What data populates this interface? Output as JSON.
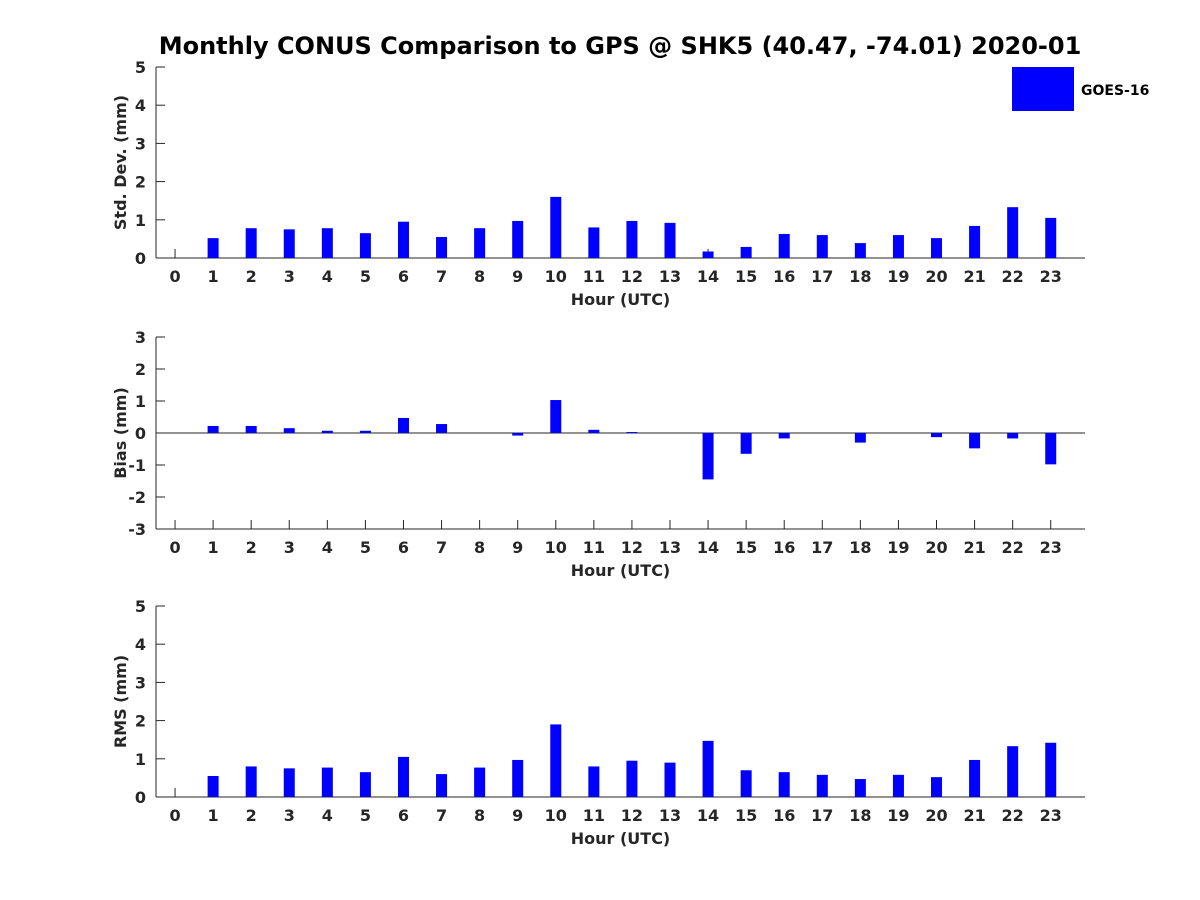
{
  "chart_data": {
    "type": "bar",
    "title": "Monthly CONUS Comparison to GPS @ SHK5 (40.47, -74.01) 2020-01",
    "legend": {
      "label": "GOES-16",
      "color": "#0000ff",
      "placement": "top-right"
    },
    "categories": [
      "0",
      "1",
      "2",
      "3",
      "4",
      "5",
      "6",
      "7",
      "8",
      "9",
      "10",
      "11",
      "12",
      "13",
      "14",
      "15",
      "16",
      "17",
      "18",
      "19",
      "20",
      "21",
      "22",
      "23"
    ],
    "subplots": [
      {
        "id": "std",
        "ylabel": "Std. Dev. (mm)",
        "xlabel": "Hour (UTC)",
        "ylim": [
          0,
          5
        ],
        "yticks": [
          0,
          1,
          2,
          3,
          4,
          5
        ],
        "series": [
          {
            "name": "GOES-16",
            "values": [
              0,
              0.52,
              0.78,
              0.75,
              0.78,
              0.65,
              0.95,
              0.55,
              0.78,
              0.97,
              1.6,
              0.8,
              0.97,
              0.92,
              0.17,
              0.29,
              0.63,
              0.6,
              0.39,
              0.6,
              0.52,
              0.84,
              1.33,
              1.05
            ]
          }
        ]
      },
      {
        "id": "bias",
        "ylabel": "Bias (mm)",
        "xlabel": "Hour (UTC)",
        "ylim": [
          -3,
          3
        ],
        "yticks": [
          -3,
          -2,
          -1,
          0,
          1,
          2,
          3
        ],
        "series": [
          {
            "name": "GOES-16",
            "values": [
              0,
              0.22,
              0.22,
              0.15,
              0.07,
              0.07,
              0.47,
              0.28,
              0,
              -0.08,
              1.03,
              0.1,
              0.03,
              0,
              -1.45,
              -0.65,
              -0.17,
              0,
              -0.3,
              0,
              -0.13,
              -0.48,
              -0.17,
              -0.98
            ]
          }
        ]
      },
      {
        "id": "rms",
        "ylabel": "RMS (mm)",
        "xlabel": "Hour (UTC)",
        "ylim": [
          0,
          5
        ],
        "yticks": [
          0,
          1,
          2,
          3,
          4,
          5
        ],
        "series": [
          {
            "name": "GOES-16",
            "values": [
              0,
              0.55,
              0.8,
              0.75,
              0.77,
              0.65,
              1.05,
              0.6,
              0.77,
              0.97,
              1.9,
              0.8,
              0.95,
              0.9,
              1.47,
              0.7,
              0.65,
              0.58,
              0.47,
              0.58,
              0.52,
              0.97,
              1.33,
              1.42
            ]
          }
        ]
      }
    ]
  }
}
